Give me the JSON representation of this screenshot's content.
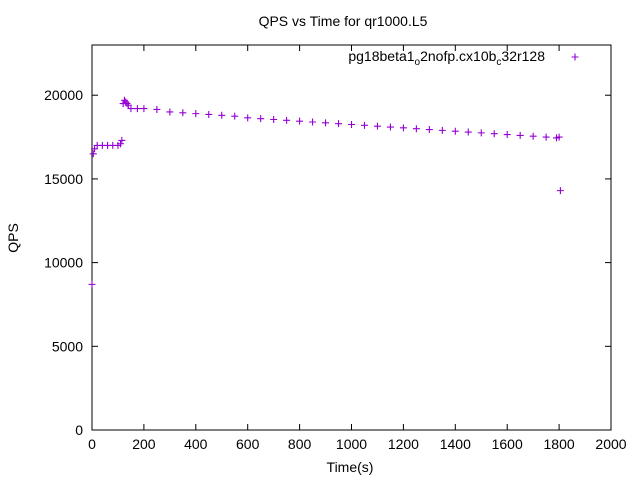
{
  "chart_data": {
    "type": "scatter",
    "title": "QPS vs Time for qr1000.L5",
    "xlabel": "Time(s)",
    "ylabel": "QPS",
    "xlim": [
      0,
      2000
    ],
    "ylim": [
      0,
      23000
    ],
    "xticks": [
      0,
      200,
      400,
      600,
      800,
      1000,
      1200,
      1400,
      1600,
      1800,
      2000
    ],
    "yticks": [
      0,
      5000,
      10000,
      15000,
      20000
    ],
    "grid": false,
    "legend_position": "top-right",
    "marker": "plus",
    "color": "#9400d3",
    "legend": {
      "parts": [
        {
          "text": "pg18beta1",
          "sub": false
        },
        {
          "text": "o",
          "sub": true
        },
        {
          "text": "2nofp.cx10b",
          "sub": false
        },
        {
          "text": "c",
          "sub": true
        },
        {
          "text": "32r128",
          "sub": false
        }
      ]
    },
    "series": [
      {
        "x": [
          0,
          5,
          10,
          20,
          40,
          60,
          80,
          100,
          110,
          115,
          120,
          125,
          130,
          135,
          140,
          150,
          175,
          200,
          250,
          300,
          350,
          400,
          450,
          500,
          550,
          600,
          650,
          700,
          750,
          800,
          850,
          900,
          950,
          1000,
          1050,
          1100,
          1150,
          1200,
          1250,
          1300,
          1350,
          1400,
          1450,
          1500,
          1550,
          1600,
          1650,
          1700,
          1750,
          1790,
          1800,
          1805
        ],
        "y": [
          8700,
          16500,
          16800,
          17000,
          17000,
          17000,
          17000,
          17000,
          17100,
          17300,
          19500,
          19700,
          19600,
          19500,
          19400,
          19200,
          19200,
          19200,
          19150,
          19000,
          18950,
          18900,
          18850,
          18800,
          18750,
          18650,
          18600,
          18550,
          18500,
          18450,
          18400,
          18350,
          18300,
          18250,
          18200,
          18150,
          18100,
          18050,
          18000,
          17950,
          17900,
          17850,
          17800,
          17750,
          17700,
          17650,
          17600,
          17550,
          17500,
          17450,
          17500,
          14300
        ]
      }
    ]
  }
}
